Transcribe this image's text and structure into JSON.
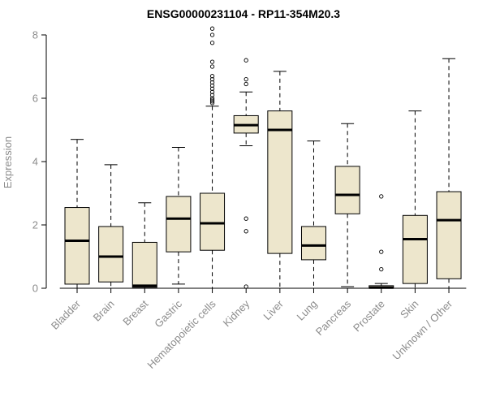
{
  "chart_data": {
    "type": "boxplot",
    "title": "ENSG00000231104 - RP11-354M20.3",
    "ylabel": "Expression",
    "ylim": [
      0,
      8
    ],
    "yticks": [
      0,
      2,
      4,
      6,
      8
    ],
    "grid": false,
    "legend": "none",
    "box_fill_color": "#EDE6CC",
    "box_stroke_color": "#000000",
    "label_color": "#8c8c8c",
    "categories": [
      "Bladder",
      "Brain",
      "Breast",
      "Gastric",
      "Hematopoietic cells",
      "Kidney",
      "Liver",
      "Lung",
      "Pancreas",
      "Prostate",
      "Skin",
      "Unknown / Other"
    ],
    "series": [
      {
        "name": "Bladder",
        "whisker_low": 0,
        "q1": 0.13,
        "median": 1.5,
        "q3": 2.55,
        "whisker_high": 4.7,
        "outliers": []
      },
      {
        "name": "Brain",
        "whisker_low": 0,
        "q1": 0.2,
        "median": 1.0,
        "q3": 1.95,
        "whisker_high": 3.9,
        "outliers": []
      },
      {
        "name": "Breast",
        "whisker_low": 0,
        "q1": 0.03,
        "median": 0.08,
        "q3": 1.45,
        "whisker_high": 2.7,
        "outliers": []
      },
      {
        "name": "Gastric",
        "whisker_low": 0.13,
        "q1": 1.15,
        "median": 2.2,
        "q3": 2.9,
        "whisker_high": 4.45,
        "outliers": []
      },
      {
        "name": "Hematopoietic cells",
        "whisker_low": 0,
        "q1": 1.2,
        "median": 2.05,
        "q3": 3.0,
        "whisker_high": 5.75,
        "outliers": [
          5.85,
          5.9,
          5.95,
          6.0,
          6.1,
          6.2,
          6.3,
          6.4,
          6.5,
          6.6,
          6.7,
          7.0,
          7.15,
          7.75,
          8.0,
          8.2
        ]
      },
      {
        "name": "Kidney",
        "whisker_low": 4.5,
        "q1": 4.9,
        "median": 5.15,
        "q3": 5.45,
        "whisker_high": 6.2,
        "outliers": [
          0.05,
          1.8,
          2.2,
          6.45,
          6.6,
          7.2
        ]
      },
      {
        "name": "Liver",
        "whisker_low": 0,
        "q1": 1.1,
        "median": 5.0,
        "q3": 5.6,
        "whisker_high": 6.85,
        "outliers": []
      },
      {
        "name": "Lung",
        "whisker_low": 0,
        "q1": 0.9,
        "median": 1.35,
        "q3": 1.95,
        "whisker_high": 4.65,
        "outliers": []
      },
      {
        "name": "Pancreas",
        "whisker_low": 0.05,
        "q1": 2.35,
        "median": 2.95,
        "q3": 3.85,
        "whisker_high": 5.2,
        "outliers": []
      },
      {
        "name": "Prostate",
        "whisker_low": 0,
        "q1": 0,
        "median": 0.02,
        "q3": 0.08,
        "whisker_high": 0.15,
        "outliers": [
          0.6,
          1.15,
          2.9
        ]
      },
      {
        "name": "Skin",
        "whisker_low": 0,
        "q1": 0.15,
        "median": 1.55,
        "q3": 2.3,
        "whisker_high": 5.6,
        "outliers": []
      },
      {
        "name": "Unknown / Other",
        "whisker_low": 0,
        "q1": 0.3,
        "median": 2.15,
        "q3": 3.05,
        "whisker_high": 7.25,
        "outliers": []
      }
    ]
  }
}
